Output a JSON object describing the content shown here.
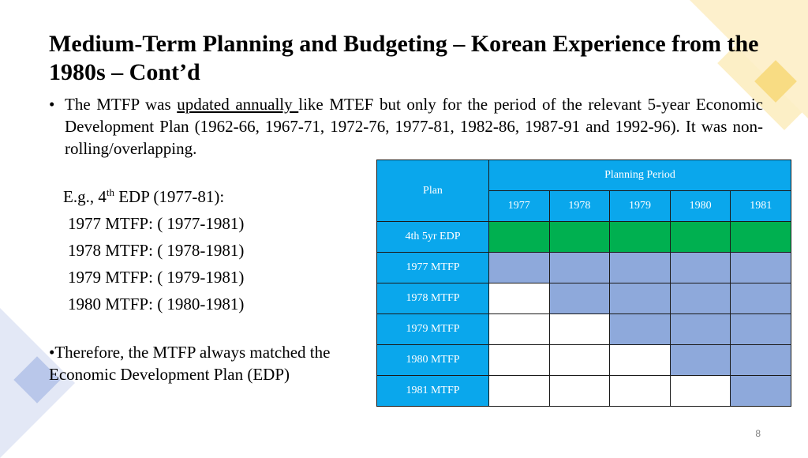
{
  "title": "Medium-Term Planning and Budgeting – Korean Experience from the 1980s – Cont’d",
  "bullet1": {
    "marker": "•",
    "before": "The MTFP was ",
    "underlined": "updated annually ",
    "after": "like MTEF but only for the period of the relevant 5-year Economic Development Plan (1962-66, 1967-71, 1972-76, 1977-81, 1982-86, 1987-91 and 1992-96). It was non-rolling/overlapping."
  },
  "example": {
    "intro_prefix": "E.g., 4",
    "intro_sup": "th",
    "intro_suffix": " EDP (1977-81):",
    "lines": [
      "1977 MTFP: ( 1977-1981)",
      "1978 MTFP: ( 1978-1981)",
      "1979 MTFP: ( 1979-1981)",
      "1980 MTFP: ( 1980-1981)"
    ]
  },
  "bullet2": {
    "marker": "•",
    "text": "Therefore, the MTFP always matched the Economic Development Plan (EDP)"
  },
  "table": {
    "plan_header": "Plan",
    "period_header": "Planning Period",
    "years": [
      "1977",
      "1978",
      "1979",
      "1980",
      "1981"
    ],
    "rows": [
      {
        "label": "4th 5yr EDP",
        "cells": [
          "green",
          "green",
          "green",
          "green",
          "green"
        ]
      },
      {
        "label": "1977 MTFP",
        "cells": [
          "blue",
          "blue",
          "blue",
          "blue",
          "blue"
        ]
      },
      {
        "label": "1978 MTFP",
        "cells": [
          "white",
          "blue",
          "blue",
          "blue",
          "blue"
        ]
      },
      {
        "label": "1979 MTFP",
        "cells": [
          "white",
          "white",
          "blue",
          "blue",
          "blue"
        ]
      },
      {
        "label": "1980 MTFP",
        "cells": [
          "white",
          "white",
          "white",
          "blue",
          "blue"
        ]
      },
      {
        "label": "1981 MTFP",
        "cells": [
          "white",
          "white",
          "white",
          "white",
          "blue"
        ]
      }
    ]
  },
  "colors": {
    "header": "#0aa7ec",
    "green": "#00b050",
    "blue": "#8ea9db",
    "white": "#ffffff"
  },
  "page_number": "8"
}
